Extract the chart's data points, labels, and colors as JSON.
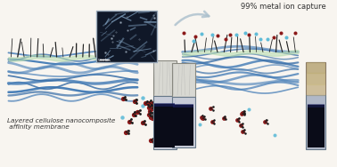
{
  "bg_color": "#f8f5f0",
  "title_left": "Layered cellulose nanocomposite\n affinity membrane",
  "title_right": "99% metal ion capture",
  "arrow_color": "#aabfcc",
  "membrane_blue": "#4a80b8",
  "membrane_blue2": "#3a6fa8",
  "membrane_green": "#b8ddb0",
  "membrane_dark": "#222222",
  "mol_red": "#8b1a1a",
  "mol_blue": "#60bcd8",
  "mol_dark": "#1a1a1a",
  "sem_dark": "#1a2030",
  "sem_light": "#7a9ab8",
  "sem_bg": "#101828",
  "font_size_label": 5.2,
  "font_size_caption": 6.0,
  "vial_upper_color": "#d0cfc8",
  "vial_lower_bg": "#c8cdd8",
  "vial_liquid": "#0a0c18",
  "vial_liquid2": "#1a2060",
  "right_vial_color": "#c8b898"
}
